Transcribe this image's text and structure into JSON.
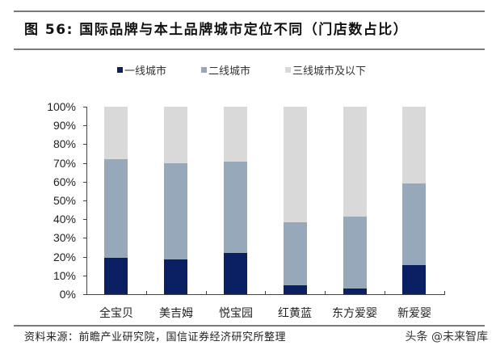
{
  "header": {
    "title": "图 56:  国际品牌与本土品牌城市定位不同（门店数占比）"
  },
  "footer": {
    "source": "资料来源：前瞻产业研究院，国信证券经济研究所整理",
    "watermark": "头条 @未来智库"
  },
  "colors": {
    "tier1": "#0a2062",
    "tier2": "#97a8ba",
    "tier3": "#d9d9d9",
    "rule": "#7a7a7a"
  },
  "chart_data": {
    "type": "bar",
    "stacked": true,
    "percent_stacked": true,
    "title": "国际品牌与本土品牌城市定位不同（门店数占比）",
    "xlabel": "",
    "ylabel": "",
    "ylim": [
      0,
      100
    ],
    "yticks": [
      "0%",
      "10%",
      "20%",
      "30%",
      "40%",
      "50%",
      "60%",
      "70%",
      "80%",
      "90%",
      "100%"
    ],
    "grid": false,
    "legend_position": "top",
    "categories": [
      "全宝贝",
      "美吉姆",
      "悦宝园",
      "红黄蓝",
      "东方爱婴",
      "新爱婴"
    ],
    "series": [
      {
        "name": "一线城市",
        "color": "#0a2062",
        "values": [
          19.5,
          18.5,
          22,
          5,
          3,
          15.5
        ]
      },
      {
        "name": "二线城市",
        "color": "#97a8ba",
        "values": [
          52.5,
          51.5,
          48.5,
          33.5,
          38.5,
          43.5
        ]
      },
      {
        "name": "三线城市及以下",
        "color": "#d9d9d9",
        "values": [
          28,
          30,
          29.5,
          61.5,
          58.5,
          41
        ]
      }
    ]
  }
}
